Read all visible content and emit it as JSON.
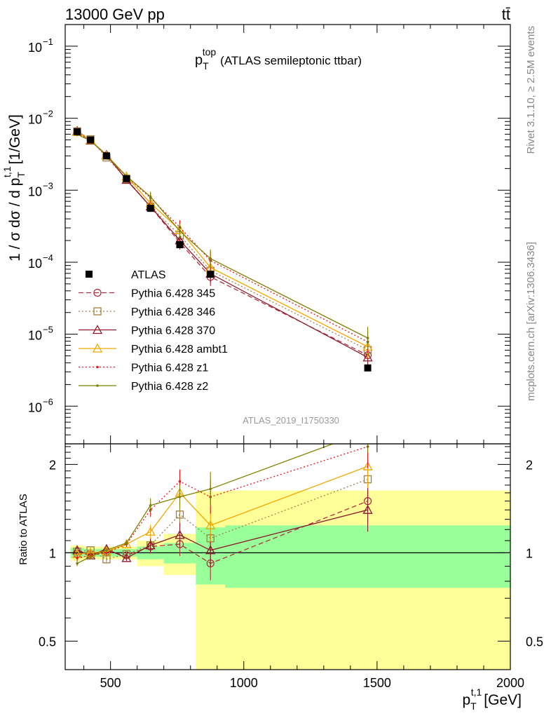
{
  "header": {
    "energy_label": "13000 GeV pp",
    "process_symbol": "tt̄"
  },
  "side_text": {
    "rivet": "Rivet 3.1.10, ≥ 2.5M events",
    "source": "mcplots.cern.ch [arXiv:1306.3436]"
  },
  "chart_data": {
    "type": "line",
    "title": {
      "main": "p",
      "sub": "T",
      "sup": "top",
      "rest": "(ATLAS semileptonic ttbar)"
    },
    "analysis_label": "ATLAS_2019_I1750330",
    "y_axis": {
      "label_prefix": "1 / σ dσ / d p",
      "label_sub": "T",
      "label_sup": "t,1",
      "label_unit": "[1/GeV]",
      "scale": "log",
      "range": [
        3e-07,
        0.2
      ],
      "tick_labels": [
        {
          "mant": "10",
          "exp": "−6",
          "value": 1e-06
        },
        {
          "mant": "10",
          "exp": "−5",
          "value": 1e-05
        },
        {
          "mant": "10",
          "exp": "−4",
          "value": 0.0001
        },
        {
          "mant": "10",
          "exp": "−3",
          "value": 0.001
        },
        {
          "mant": "10",
          "exp": "−2",
          "value": 0.01
        },
        {
          "mant": "10",
          "exp": "−1",
          "value": 0.1
        }
      ]
    },
    "x_axis": {
      "label_prefix": "p",
      "label_sub": "T",
      "label_sup": "t,1",
      "label_unit": "[GeV]",
      "range": [
        330,
        2000
      ],
      "ticks": [
        500,
        1000,
        1500,
        2000
      ],
      "tick_labels": [
        "500",
        "1000",
        "1500",
        "2000"
      ]
    },
    "ratio_axis": {
      "label": "Ratio to ATLAS",
      "scale": "log",
      "range": [
        0.4,
        2.35
      ],
      "ticks": [
        0.5,
        1,
        2
      ],
      "tick_labels": [
        "0.5",
        "1",
        "2"
      ]
    },
    "legend_position": "middle-left",
    "bins": [
      {
        "lo": 350,
        "hi": 400,
        "x": 375,
        "band_inner": 0.04,
        "band_outer": 0.06
      },
      {
        "lo": 400,
        "hi": 450,
        "x": 425,
        "band_inner": 0.03,
        "band_outer": 0.05
      },
      {
        "lo": 450,
        "hi": 520,
        "x": 485,
        "band_inner": 0.03,
        "band_outer": 0.05
      },
      {
        "lo": 520,
        "hi": 600,
        "x": 560,
        "band_inner": 0.03,
        "band_outer": 0.05
      },
      {
        "lo": 600,
        "hi": 700,
        "x": 650,
        "band_inner": 0.05,
        "band_outer": 0.1
      },
      {
        "lo": 700,
        "hi": 820,
        "x": 760,
        "band_inner": 0.08,
        "band_outer": 0.16
      },
      {
        "lo": 820,
        "hi": 930,
        "x": 875,
        "band_inner": 0.22,
        "band_outer": 0.62
      },
      {
        "lo": 930,
        "hi": 2000,
        "x": 1465,
        "band_inner": 0.24,
        "band_outer": 0.63
      }
    ],
    "band_colors": {
      "inner": "#99ff99",
      "outer": "#ffff99"
    },
    "data": {
      "name": "ATLAS",
      "color": "#000000",
      "x": [
        375,
        425,
        485,
        560,
        650,
        760,
        875,
        1465
      ],
      "values": [
        0.0065,
        0.005,
        0.003,
        0.00145,
        0.00056,
        0.000175,
        6.8e-05,
        3.4e-06
      ]
    },
    "series": [
      {
        "name": "Pythia 6.428 345",
        "color": "#b03040",
        "marker": "open-circle",
        "dash": "7,4",
        "ratio": [
          0.99,
          0.99,
          1.01,
          0.98,
          1.05,
          1.07,
          0.92,
          1.5
        ]
      },
      {
        "name": "Pythia 6.428 346",
        "color": "#a08040",
        "marker": "open-square",
        "dash": "2,3",
        "ratio": [
          1.01,
          1.02,
          0.95,
          0.99,
          1.06,
          1.35,
          1.12,
          1.78
        ]
      },
      {
        "name": "Pythia 6.428 370",
        "color": "#8b1a2a",
        "marker": "open-triangle",
        "dash": "",
        "ratio": [
          1.02,
          0.98,
          1.03,
          0.96,
          1.06,
          1.15,
          1.02,
          1.4
        ]
      },
      {
        "name": "Pythia 6.428 ambt1",
        "color": "#f0a800",
        "marker": "open-triangle",
        "dash": "",
        "ratio": [
          0.99,
          1.0,
          1.01,
          1.07,
          1.18,
          1.6,
          1.24,
          1.97
        ]
      },
      {
        "name": "Pythia 6.428 z1",
        "color": "#e8141a",
        "marker": "dot",
        "dash": "2,3",
        "ratio": [
          0.96,
          0.98,
          1.0,
          1.07,
          1.4,
          1.75,
          1.55,
          2.3
        ]
      },
      {
        "name": "Pythia 6.428 z2",
        "color": "#808000",
        "marker": "dot",
        "dash": "",
        "ratio": [
          0.92,
          0.97,
          1.02,
          1.08,
          1.45,
          1.55,
          1.65,
          2.6
        ]
      }
    ]
  }
}
